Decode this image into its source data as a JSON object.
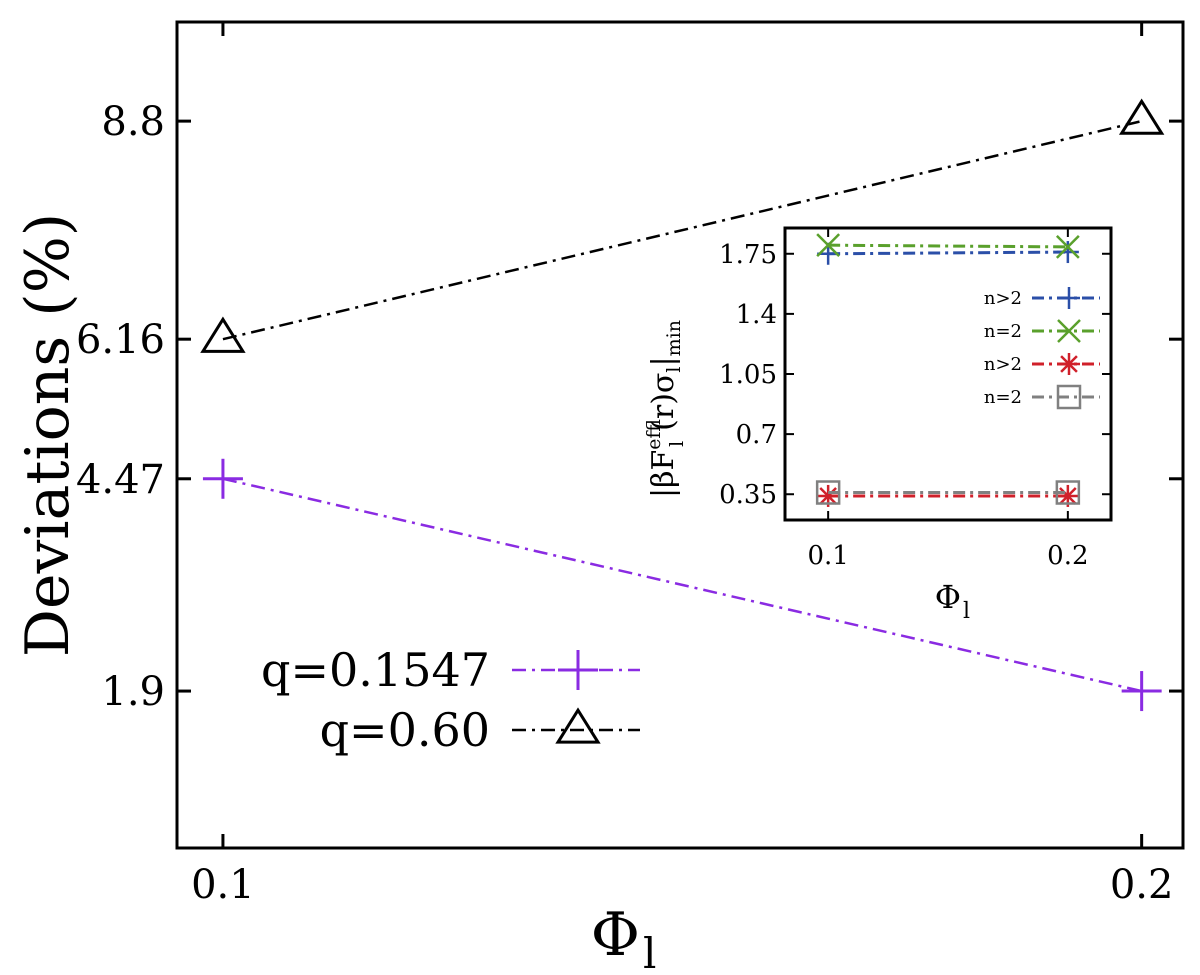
{
  "chart_data": [
    {
      "type": "line",
      "x": [
        0.1,
        0.2
      ],
      "x_ticks": [
        "0.1",
        "0.2"
      ],
      "y_ticks": [
        "1.9",
        "4.47",
        "6.16",
        "8.8"
      ],
      "xlim": [
        0.095,
        0.2045
      ],
      "ylim": [
        0.0,
        10.0
      ],
      "xlabel": "Φ",
      "xlabel_sub": "l",
      "ylabel": "Deviations (%)",
      "grid": false,
      "legend_position": "bottom-left",
      "series": [
        {
          "name": "q=0.1547",
          "values": [
            4.47,
            1.9
          ],
          "color": "#8a2be2",
          "marker": "plus"
        },
        {
          "name": "q=0.60",
          "values": [
            6.16,
            8.8
          ],
          "color": "#000000",
          "marker": "triangle"
        }
      ]
    },
    {
      "type": "line",
      "inset": true,
      "x": [
        0.1,
        0.2
      ],
      "x_ticks": [
        "0.1",
        "0.2"
      ],
      "y_ticks": [
        "0.35",
        "0.7",
        "1.05",
        "1.4",
        "1.75"
      ],
      "xlim": [
        0.082,
        0.218
      ],
      "ylim": [
        0.2,
        1.9
      ],
      "xlabel": "Φ",
      "xlabel_sub": "l",
      "ylabel": "|βF",
      "ylabel_sup": "eff",
      "ylabel_sub": "ll",
      "ylabel_mid": "(r)σ",
      "ylabel_sub2": "l",
      "ylabel_end": "|",
      "ylabel_sub3": "min",
      "grid": false,
      "legend_position": "right",
      "series": [
        {
          "name": "n>2",
          "values": [
            1.75,
            1.76
          ],
          "color": "#2b4fa8",
          "marker": "plus"
        },
        {
          "name": "n=2",
          "values": [
            1.8,
            1.79
          ],
          "color": "#5aa02c",
          "marker": "cross"
        },
        {
          "name": "n>2",
          "values": [
            0.34,
            0.34
          ],
          "color": "#d0202a",
          "marker": "star"
        },
        {
          "name": "n=2",
          "values": [
            0.36,
            0.36
          ],
          "color": "#808080",
          "marker": "square"
        }
      ]
    }
  ]
}
